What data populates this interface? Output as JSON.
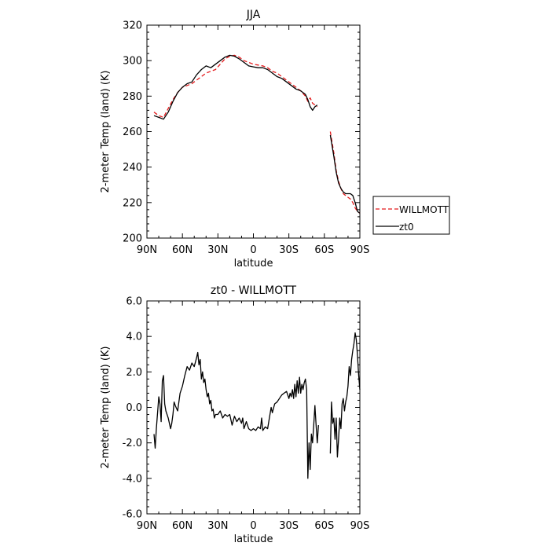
{
  "chart_data": [
    {
      "type": "line",
      "title": "JJA",
      "xlabel": "latitude",
      "ylabel": "2-meter Temp (land) (K)",
      "xlim": [
        90,
        -90
      ],
      "ylim": [
        200,
        320
      ],
      "x_ticks": [
        90,
        60,
        30,
        0,
        -30,
        -60,
        -90
      ],
      "x_tick_labels": [
        "90N",
        "60N",
        "30N",
        "0",
        "30S",
        "60S",
        "90S"
      ],
      "y_ticks": [
        200,
        220,
        240,
        260,
        280,
        300,
        320
      ],
      "y_tick_labels": [
        "200",
        "220",
        "240",
        "260",
        "280",
        "300",
        "320"
      ],
      "grid": false,
      "legend_position": "right",
      "series": [
        {
          "name": "WILLMOTT",
          "color": "#e41a1c",
          "dash": "dashed",
          "segments": [
            [
              [
                84,
                271
              ],
              [
                80,
                269
              ],
              [
                76,
                268
              ],
              [
                72,
                273
              ],
              [
                68,
                278
              ],
              [
                64,
                282
              ],
              [
                60,
                285
              ],
              [
                56,
                286
              ],
              [
                52,
                287
              ],
              [
                48,
                289
              ],
              [
                44,
                291
              ],
              [
                40,
                293
              ],
              [
                36,
                294
              ],
              [
                32,
                295
              ],
              [
                28,
                298
              ],
              [
                24,
                301
              ],
              [
                20,
                302.5
              ],
              [
                16,
                303
              ],
              [
                12,
                302
              ],
              [
                8,
                300
              ],
              [
                4,
                299
              ],
              [
                0,
                298
              ],
              [
                -4,
                297.5
              ],
              [
                -8,
                297
              ],
              [
                -12,
                296
              ],
              [
                -16,
                294
              ],
              [
                -20,
                293
              ],
              [
                -24,
                291
              ],
              [
                -28,
                289
              ],
              [
                -32,
                287
              ],
              [
                -36,
                285
              ],
              [
                -40,
                283
              ],
              [
                -44,
                280
              ],
              [
                -46,
                277
              ],
              [
                -48,
                279
              ],
              [
                -50,
                276
              ],
              [
                -52,
                275
              ],
              [
                -54,
                274
              ]
            ],
            [
              [
                -65,
                260
              ],
              [
                -68,
                248
              ],
              [
                -70,
                238
              ],
              [
                -72,
                232
              ],
              [
                -74,
                228
              ],
              [
                -76,
                225
              ],
              [
                -78,
                224
              ],
              [
                -80,
                223
              ],
              [
                -82,
                222
              ],
              [
                -84,
                220
              ],
              [
                -86,
                217
              ],
              [
                -88,
                215
              ],
              [
                -90,
                214
              ]
            ]
          ]
        },
        {
          "name": "zt0",
          "color": "#000000",
          "dash": "solid",
          "segments": [
            [
              [
                84,
                269
              ],
              [
                80,
                268
              ],
              [
                76,
                267
              ],
              [
                72,
                271
              ],
              [
                68,
                277
              ],
              [
                64,
                282
              ],
              [
                60,
                285
              ],
              [
                56,
                287
              ],
              [
                52,
                288
              ],
              [
                48,
                292
              ],
              [
                44,
                295
              ],
              [
                40,
                297
              ],
              [
                36,
                296
              ],
              [
                32,
                298
              ],
              [
                28,
                300
              ],
              [
                24,
                302
              ],
              [
                20,
                303
              ],
              [
                16,
                302.5
              ],
              [
                12,
                301
              ],
              [
                8,
                299
              ],
              [
                4,
                297
              ],
              [
                0,
                296.5
              ],
              [
                -4,
                296
              ],
              [
                -8,
                296
              ],
              [
                -12,
                295
              ],
              [
                -16,
                293
              ],
              [
                -20,
                291
              ],
              [
                -24,
                290
              ],
              [
                -28,
                288
              ],
              [
                -32,
                286
              ],
              [
                -36,
                284
              ],
              [
                -40,
                283
              ],
              [
                -44,
                281
              ],
              [
                -46,
                278
              ],
              [
                -48,
                274
              ],
              [
                -50,
                272
              ],
              [
                -52,
                274
              ],
              [
                -54,
                275
              ]
            ],
            [
              [
                -65,
                258
              ],
              [
                -68,
                246
              ],
              [
                -70,
                237
              ],
              [
                -72,
                231
              ],
              [
                -74,
                228
              ],
              [
                -76,
                226
              ],
              [
                -78,
                225
              ],
              [
                -80,
                225
              ],
              [
                -82,
                225
              ],
              [
                -84,
                224
              ],
              [
                -86,
                220
              ],
              [
                -88,
                215
              ],
              [
                -90,
                214
              ]
            ]
          ]
        }
      ]
    },
    {
      "type": "line",
      "title": "zt0 - WILLMOTT",
      "xlabel": "latitude",
      "ylabel": "2-meter Temp (land) (K)",
      "xlim": [
        90,
        -90
      ],
      "ylim": [
        -6,
        6
      ],
      "x_ticks": [
        90,
        60,
        30,
        0,
        -30,
        -60,
        -90
      ],
      "x_tick_labels": [
        "90N",
        "60N",
        "30N",
        "0",
        "30S",
        "60S",
        "90S"
      ],
      "y_ticks": [
        -6,
        -4,
        -2,
        0,
        2,
        4,
        6
      ],
      "y_tick_labels": [
        "-6.0",
        "-4.0",
        "-2.0",
        "0.0",
        "2.0",
        "4.0",
        "6.0"
      ],
      "grid": false,
      "series": [
        {
          "name": "",
          "color": "#000000",
          "dash": "solid",
          "segments": [
            [
              [
                84,
                -1.5
              ],
              [
                83,
                -2.3
              ],
              [
                82,
                -1.2
              ],
              [
                80,
                0.6
              ],
              [
                79,
                0.2
              ],
              [
                78,
                -0.8
              ],
              [
                77,
                1.5
              ],
              [
                76,
                1.8
              ],
              [
                75,
                0.2
              ],
              [
                74,
                -0.2
              ],
              [
                72,
                -0.6
              ],
              [
                71,
                -0.9
              ],
              [
                70,
                -1.2
              ],
              [
                69,
                -0.9
              ],
              [
                68,
                -0.4
              ],
              [
                67,
                0.3
              ],
              [
                66,
                0.1
              ],
              [
                64,
                -0.2
              ],
              [
                62,
                0.8
              ],
              [
                60,
                1.2
              ],
              [
                58,
                1.8
              ],
              [
                56,
                2.3
              ],
              [
                54,
                2.1
              ],
              [
                52,
                2.5
              ],
              [
                50,
                2.3
              ],
              [
                48,
                2.8
              ],
              [
                47,
                3.1
              ],
              [
                46,
                2.4
              ],
              [
                45,
                2.7
              ],
              [
                44,
                1.6
              ],
              [
                43,
                2.0
              ],
              [
                42,
                1.4
              ],
              [
                41,
                1.6
              ],
              [
                40,
                1.0
              ],
              [
                39,
                0.6
              ],
              [
                38,
                0.8
              ],
              [
                37,
                0.2
              ],
              [
                36,
                0.4
              ],
              [
                35,
                -0.2
              ],
              [
                34,
                -0.1
              ],
              [
                33,
                -0.6
              ],
              [
                32,
                -0.4
              ],
              [
                30,
                -0.4
              ],
              [
                28,
                -0.2
              ],
              [
                26,
                -0.6
              ],
              [
                24,
                -0.4
              ],
              [
                22,
                -0.5
              ],
              [
                20,
                -0.4
              ],
              [
                18,
                -1.0
              ],
              [
                16,
                -0.5
              ],
              [
                14,
                -0.8
              ],
              [
                12,
                -0.6
              ],
              [
                10,
                -0.9
              ],
              [
                9,
                -0.6
              ],
              [
                8,
                -1.2
              ],
              [
                6,
                -0.8
              ],
              [
                4,
                -1.2
              ],
              [
                2,
                -1.3
              ],
              [
                0,
                -1.2
              ],
              [
                -2,
                -1.3
              ],
              [
                -4,
                -1.1
              ],
              [
                -6,
                -1.2
              ],
              [
                -7,
                -0.6
              ],
              [
                -8,
                -1.3
              ],
              [
                -10,
                -1.1
              ],
              [
                -12,
                -1.2
              ],
              [
                -14,
                -0.4
              ],
              [
                -15,
                0.0
              ],
              [
                -16,
                -0.3
              ],
              [
                -18,
                0.2
              ],
              [
                -20,
                0.3
              ],
              [
                -22,
                0.5
              ],
              [
                -24,
                0.7
              ],
              [
                -26,
                0.8
              ],
              [
                -28,
                0.9
              ],
              [
                -30,
                0.5
              ],
              [
                -31,
                0.8
              ],
              [
                -32,
                0.6
              ],
              [
                -33,
                1.0
              ],
              [
                -34,
                0.5
              ],
              [
                -35,
                1.3
              ],
              [
                -36,
                0.6
              ],
              [
                -37,
                1.5
              ],
              [
                -38,
                0.8
              ],
              [
                -39,
                1.7
              ],
              [
                -40,
                0.8
              ],
              [
                -41,
                1.3
              ],
              [
                -42,
                1.0
              ],
              [
                -43,
                1.4
              ],
              [
                -44,
                1.6
              ],
              [
                -45,
                1.0
              ],
              [
                -46,
                -4.0
              ],
              [
                -47,
                -2.0
              ],
              [
                -48,
                -3.5
              ],
              [
                -49,
                -1.5
              ],
              [
                -50,
                -2.0
              ],
              [
                -51,
                -1.0
              ],
              [
                -52,
                0.1
              ],
              [
                -53,
                -1.0
              ],
              [
                -54,
                -2.0
              ],
              [
                -55,
                -1.0
              ]
            ],
            [
              [
                -65,
                -2.6
              ],
              [
                -66,
                0.3
              ],
              [
                -67,
                -0.9
              ],
              [
                -68,
                -0.6
              ],
              [
                -69,
                -1.8
              ],
              [
                -70,
                -0.6
              ],
              [
                -71,
                -2.8
              ],
              [
                -72,
                -1.8
              ],
              [
                -73,
                -0.6
              ],
              [
                -74,
                -1.2
              ],
              [
                -75,
                0.2
              ],
              [
                -76,
                0.5
              ],
              [
                -77,
                -0.2
              ],
              [
                -78,
                0.3
              ],
              [
                -79,
                0.6
              ],
              [
                -80,
                1.2
              ],
              [
                -81,
                2.3
              ],
              [
                -82,
                1.8
              ],
              [
                -83,
                2.7
              ],
              [
                -84,
                3.2
              ],
              [
                -85,
                3.6
              ],
              [
                -86,
                4.2
              ],
              [
                -87,
                3.8
              ],
              [
                -88,
                2.9
              ],
              [
                -89,
                1.8
              ],
              [
                -90,
                1.0
              ]
            ]
          ]
        }
      ]
    }
  ]
}
